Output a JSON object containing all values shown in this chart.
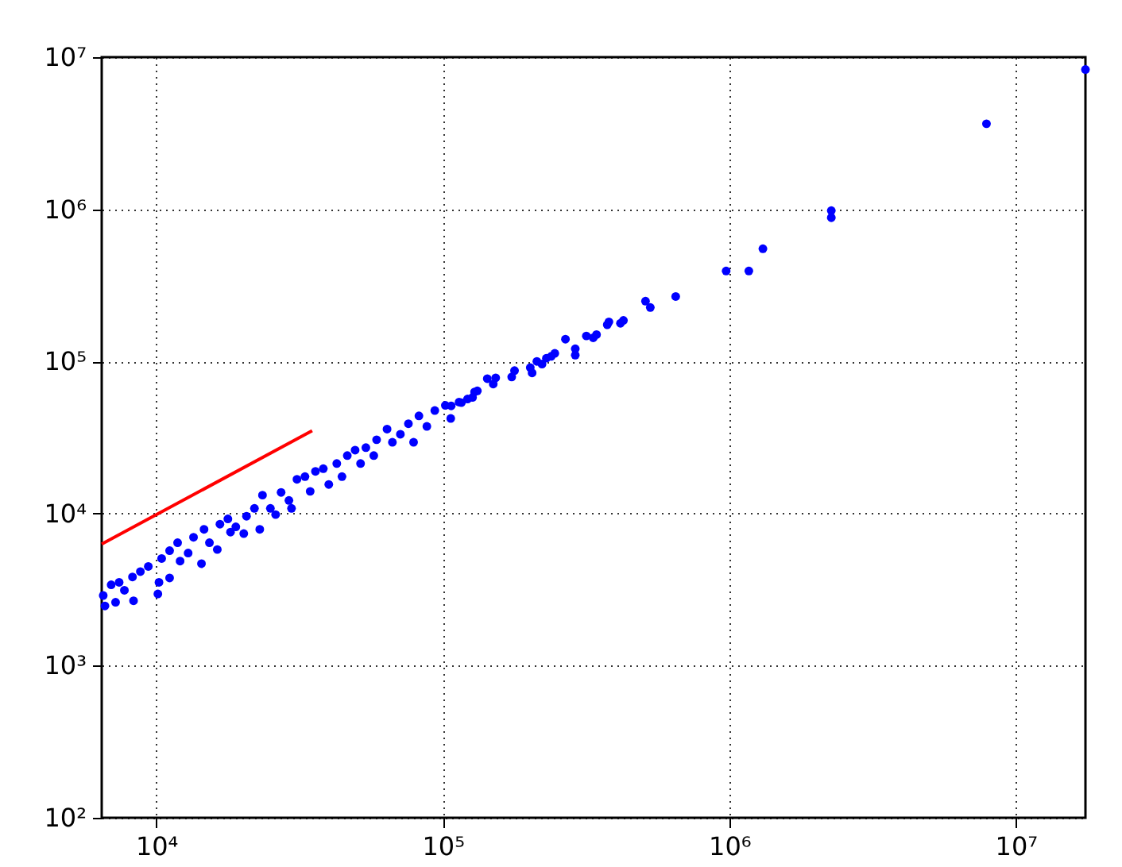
{
  "chart_data": {
    "type": "scatter",
    "log": "xy",
    "grid": true,
    "marker": "circle",
    "xlim": [
      6450,
      17500000
    ],
    "ylim": [
      100,
      10000000
    ],
    "xticks": [
      {
        "value": 10000,
        "label": "10⁴"
      },
      {
        "value": 100000,
        "label": "10⁵"
      },
      {
        "value": 1000000,
        "label": "10⁶"
      },
      {
        "value": 10000000,
        "label": "10⁷"
      }
    ],
    "yticks": [
      {
        "value": 100,
        "label": "10²"
      },
      {
        "value": 1000,
        "label": "10³"
      },
      {
        "value": 10000,
        "label": "10⁴"
      },
      {
        "value": 100000,
        "label": "10⁵"
      },
      {
        "value": 1000000,
        "label": "10⁶"
      },
      {
        "value": 10000000,
        "label": "10⁷"
      }
    ],
    "series": [
      {
        "color": "#0000ff",
        "x": [
          6530,
          6620,
          6960,
          7210,
          7420,
          7740,
          8330,
          8260,
          8800,
          9380,
          10130,
          10220,
          10440,
          11130,
          11130,
          11870,
          12110,
          12920,
          13490,
          14380,
          14680,
          15330,
          16330,
          16680,
          17780,
          18160,
          18950,
          20200,
          20650,
          22010,
          22970,
          23480,
          25020,
          26100,
          27270,
          29040,
          29650,
          30980,
          33040,
          34450,
          35940,
          38280,
          40000,
          42660,
          44480,
          46420,
          49430,
          51640,
          53900,
          57430,
          58750,
          63900,
          66700,
          71120,
          75860,
          79070,
          82550,
          87980,
          93780,
          102100,
          106600,
          116100,
          129100,
          107000,
          114000,
          122000,
          127000,
          132000,
          143000,
          150000,
          153000,
          174000,
          178000,
          205000,
          202000,
          213000,
          222000,
          230000,
          239000,
          246000,
          290000,
          290000,
          268000,
          317000,
          335000,
          344000,
          375000,
          380000,
          417000,
          427000,
          530000,
          510000,
          650000,
          975000,
          1170000,
          1310000,
          2270000,
          2270000,
          7900000,
          17500000
        ],
        "values": [
          2890,
          2470,
          3400,
          2610,
          3530,
          3130,
          2670,
          3830,
          4150,
          4490,
          2960,
          3530,
          5060,
          3770,
          5700,
          6430,
          4870,
          5500,
          6980,
          4680,
          7870,
          6430,
          5800,
          8510,
          9220,
          7550,
          8180,
          7380,
          9600,
          10810,
          7870,
          13210,
          10810,
          9840,
          13760,
          12190,
          10810,
          16790,
          17490,
          13990,
          18920,
          19720,
          15520,
          21330,
          17490,
          24050,
          26100,
          21330,
          27100,
          24050,
          30550,
          35890,
          29400,
          33190,
          38910,
          29400,
          43850,
          37410,
          47530,
          51440,
          42170,
          53580,
          62950,
          51000,
          54000,
          56600,
          58000,
          64000,
          77000,
          71000,
          78000,
          79000,
          87000,
          84000,
          91000,
          100000,
          96000,
          105000,
          108000,
          113000,
          110000,
          121000,
          140000,
          147000,
          143000,
          150000,
          174000,
          182000,
          178000,
          186000,
          226000,
          249000,
          267000,
          393000,
          393000,
          550000,
          880000,
          980000,
          3650000,
          8300000
        ]
      },
      {
        "type": "line",
        "marker": "none",
        "line_style": "solid",
        "color": "#ff0000",
        "x": [
          6450,
          35000
        ],
        "values": [
          6300,
          35000
        ]
      }
    ]
  }
}
